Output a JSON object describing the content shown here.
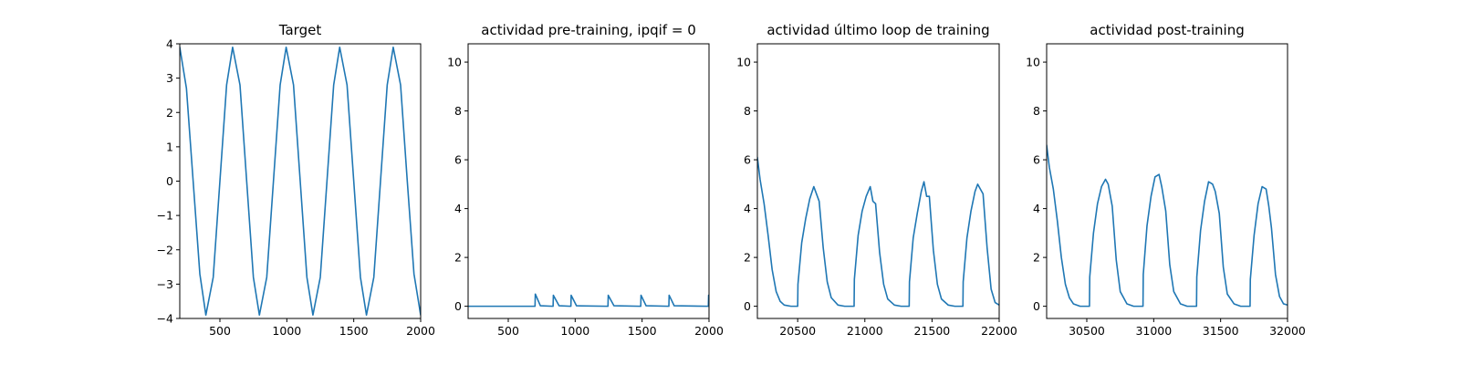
{
  "chart_data": [
    {
      "type": "line",
      "title": "Target",
      "xlim": [
        200,
        2000
      ],
      "ylim": [
        -4,
        4
      ],
      "xticks": [
        500,
        1000,
        1500,
        2000
      ],
      "yticks": [
        -4,
        -3,
        -2,
        -1,
        0,
        1,
        2,
        3,
        4
      ],
      "ytick_labels": [
        "−4",
        "−3",
        "−2",
        "−1",
        "0",
        "1",
        "2",
        "3",
        "4"
      ],
      "color": "#1f77b4",
      "series": [
        {
          "x": [
            200,
            250,
            300,
            350,
            395,
            450,
            500,
            550,
            595,
            650,
            700,
            750,
            795,
            850,
            900,
            950,
            995,
            1050,
            1100,
            1150,
            1195,
            1250,
            1300,
            1350,
            1395,
            1450,
            1500,
            1550,
            1595,
            1650,
            1700,
            1750,
            1795,
            1850,
            1900,
            1950,
            2000
          ],
          "y": [
            3.9,
            2.7,
            0.0,
            -2.7,
            -3.9,
            -2.8,
            0.0,
            2.8,
            3.9,
            2.8,
            0.0,
            -2.8,
            -3.9,
            -2.8,
            0.0,
            2.8,
            3.9,
            2.8,
            0.0,
            -2.8,
            -3.9,
            -2.8,
            0.0,
            2.8,
            3.9,
            2.8,
            0.0,
            -2.8,
            -3.9,
            -2.8,
            0.0,
            2.8,
            3.9,
            2.8,
            0.0,
            -2.7,
            -3.9
          ]
        }
      ]
    },
    {
      "type": "line",
      "title": "actividad pre-training, ipqif = 0",
      "xlim": [
        200,
        2000
      ],
      "ylim": [
        -0.5,
        10.75
      ],
      "xticks": [
        500,
        1000,
        1500,
        2000
      ],
      "yticks": [
        0,
        2,
        4,
        6,
        8,
        10
      ],
      "color": "#1f77b4",
      "series": [
        {
          "x": [
            200,
            700,
            702,
            740,
            835,
            837,
            880,
            968,
            970,
            1010,
            1245,
            1247,
            1290,
            1490,
            1492,
            1530,
            1700,
            1702,
            1740,
            1995,
            1997,
            2000
          ],
          "y": [
            0,
            0,
            0.5,
            0.02,
            0,
            0.45,
            0.02,
            0,
            0.45,
            0.02,
            0,
            0.45,
            0.02,
            0,
            0.45,
            0.02,
            0,
            0.45,
            0.02,
            0,
            0.45,
            0.3
          ]
        }
      ]
    },
    {
      "type": "line",
      "title": "actividad último loop de training",
      "xlim": [
        20200,
        22000
      ],
      "ylim": [
        -0.5,
        10.75
      ],
      "xticks": [
        20500,
        21000,
        21500,
        22000
      ],
      "yticks": [
        0,
        2,
        4,
        6,
        8,
        10
      ],
      "color": "#1f77b4",
      "series": [
        {
          "x": [
            20200,
            20220,
            20250,
            20280,
            20310,
            20340,
            20370,
            20400,
            20450,
            20500,
            20502,
            20530,
            20560,
            20590,
            20620,
            20640,
            20660,
            20690,
            20720,
            20750,
            20800,
            20850,
            20900,
            20920,
            20922,
            20950,
            20980,
            21010,
            21040,
            21060,
            21080,
            21110,
            21140,
            21170,
            21220,
            21270,
            21320,
            21330,
            21332,
            21360,
            21390,
            21420,
            21440,
            21460,
            21480,
            21510,
            21540,
            21570,
            21620,
            21670,
            21720,
            21730,
            21732,
            21760,
            21790,
            21820,
            21840,
            21860,
            21880,
            21910,
            21940,
            21970,
            22000
          ],
          "y": [
            6.1,
            5.2,
            4.2,
            2.9,
            1.5,
            0.6,
            0.2,
            0.05,
            0.0,
            0.0,
            0.9,
            2.6,
            3.6,
            4.4,
            4.9,
            4.6,
            4.3,
            2.4,
            1.0,
            0.35,
            0.05,
            0.0,
            0.0,
            0.0,
            1.1,
            2.9,
            3.9,
            4.5,
            4.9,
            4.3,
            4.2,
            2.2,
            0.9,
            0.3,
            0.05,
            0.0,
            0.0,
            0.0,
            1.0,
            2.8,
            3.8,
            4.7,
            5.1,
            4.5,
            4.5,
            2.3,
            0.9,
            0.3,
            0.05,
            0.0,
            0.0,
            0.0,
            1.0,
            2.8,
            3.9,
            4.7,
            5.0,
            4.8,
            4.6,
            2.4,
            0.7,
            0.15,
            0.05
          ]
        }
      ]
    },
    {
      "type": "line",
      "title": "actividad post-training",
      "xlim": [
        30200,
        32000
      ],
      "ylim": [
        -0.5,
        10.75
      ],
      "xticks": [
        30500,
        31000,
        31500,
        32000
      ],
      "yticks": [
        0,
        2,
        4,
        6,
        8,
        10
      ],
      "color": "#1f77b4",
      "series": [
        {
          "x": [
            30200,
            30220,
            30250,
            30280,
            30310,
            30340,
            30370,
            30400,
            30450,
            30520,
            30522,
            30550,
            30580,
            30610,
            30640,
            30660,
            30690,
            30720,
            30750,
            30800,
            30850,
            30920,
            30922,
            30950,
            30980,
            31010,
            31040,
            31060,
            31090,
            31120,
            31150,
            31200,
            31250,
            31320,
            31322,
            31350,
            31380,
            31410,
            31440,
            31460,
            31490,
            31520,
            31550,
            31600,
            31650,
            31720,
            31722,
            31750,
            31780,
            31810,
            31840,
            31860,
            31880,
            31910,
            31940,
            31970,
            32000
          ],
          "y": [
            6.6,
            5.7,
            4.8,
            3.5,
            2.0,
            0.9,
            0.35,
            0.1,
            0.0,
            0.0,
            1.2,
            3.0,
            4.2,
            4.9,
            5.2,
            5.0,
            4.1,
            1.9,
            0.6,
            0.1,
            0.0,
            0.0,
            1.3,
            3.3,
            4.5,
            5.3,
            5.4,
            4.9,
            3.9,
            1.7,
            0.6,
            0.1,
            0.0,
            0.0,
            1.2,
            3.1,
            4.3,
            5.1,
            5.0,
            4.7,
            3.8,
            1.6,
            0.5,
            0.1,
            0.0,
            0.0,
            1.1,
            2.9,
            4.2,
            4.9,
            4.8,
            4.1,
            3.2,
            1.3,
            0.4,
            0.1,
            0.05
          ]
        }
      ]
    }
  ]
}
